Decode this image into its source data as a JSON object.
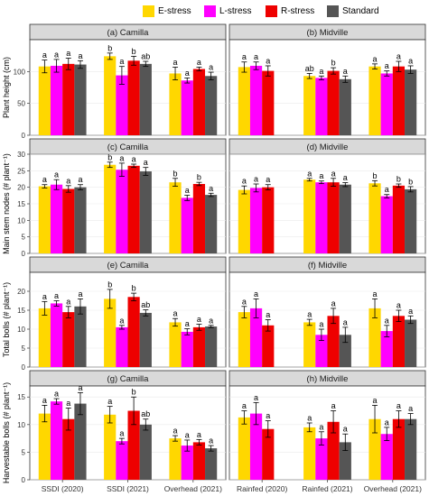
{
  "legend": {
    "items": [
      {
        "label": "E-stress",
        "color": "#FFD700"
      },
      {
        "label": "L-stress",
        "color": "#FF00FF"
      },
      {
        "label": "R-stress",
        "color": "#EE0000"
      },
      {
        "label": "Standard",
        "color": "#555555"
      }
    ]
  },
  "x_tick_labels": {
    "left": [
      "SSDI (2020)",
      "SSDI (2021)",
      "Overhead (2021)"
    ],
    "right": [
      "Rainfed (2020)",
      "Rainfed (2021)",
      "Overhead (2021)"
    ]
  },
  "chart_data": [
    {
      "type": "bar",
      "panel": "a",
      "title": "(a) Camilla",
      "ylabel": "Plant height (cm)",
      "ylim": [
        0,
        150
      ],
      "yticks": [
        0,
        50,
        100
      ],
      "categories": [
        "SSDI (2020)",
        "SSDI (2021)",
        "Overhead (2021)"
      ],
      "series": [
        {
          "name": "E-stress",
          "values": [
            108,
            124,
            97
          ],
          "errors": [
            10,
            5,
            10
          ],
          "letters": [
            "a",
            "b",
            "a"
          ]
        },
        {
          "name": "L-stress",
          "values": [
            109,
            94,
            86
          ],
          "errors": [
            10,
            14,
            4
          ],
          "letters": [
            "a",
            "a",
            "a"
          ]
        },
        {
          "name": "R-stress",
          "values": [
            112,
            117,
            104
          ],
          "errors": [
            9,
            7,
            3
          ],
          "letters": [
            "a",
            "b",
            "a"
          ]
        },
        {
          "name": "Standard",
          "values": [
            111,
            112,
            93
          ],
          "errors": [
            6,
            4,
            6
          ],
          "letters": [
            "a",
            "ab",
            "a"
          ]
        }
      ]
    },
    {
      "type": "bar",
      "panel": "b",
      "title": "(b) Midville",
      "ylim": [
        0,
        150
      ],
      "yticks": [
        0,
        50,
        100
      ],
      "categories": [
        "Rainfed (2020)",
        "Rainfed (2021)",
        "Overhead (2021)"
      ],
      "series": [
        {
          "name": "E-stress",
          "values": [
            107,
            93,
            108
          ],
          "errors": [
            8,
            4,
            4
          ],
          "letters": [
            "a",
            "ab",
            "a"
          ]
        },
        {
          "name": "L-stress",
          "values": [
            109,
            90,
            97
          ],
          "errors": [
            6,
            3,
            4
          ],
          "letters": [
            "a",
            "a",
            "a"
          ]
        },
        {
          "name": "R-stress",
          "values": [
            101,
            101,
            108
          ],
          "errors": [
            8,
            5,
            8
          ],
          "letters": [
            "a",
            "b",
            "a"
          ]
        },
        {
          "name": "Standard",
          "values": [
            null,
            88,
            103
          ],
          "errors": [
            null,
            5,
            6
          ],
          "letters": [
            null,
            "a",
            "a"
          ]
        }
      ]
    },
    {
      "type": "bar",
      "panel": "c",
      "title": "(c) Camilla",
      "ylabel": "Main stem nodes (# plant⁻¹)",
      "ylim": [
        0,
        30
      ],
      "yticks": [
        0,
        5,
        10,
        15,
        20,
        25,
        30
      ],
      "categories": [
        "SSDI (2020)",
        "SSDI (2021)",
        "Overhead (2021)"
      ],
      "series": [
        {
          "name": "E-stress",
          "values": [
            20.3,
            26.8,
            21.5
          ],
          "errors": [
            0.5,
            0.8,
            1.2
          ],
          "letters": [
            "a",
            "b",
            "b"
          ]
        },
        {
          "name": "L-stress",
          "values": [
            20.8,
            25.3,
            16.8
          ],
          "errors": [
            1.5,
            2.0,
            0.8
          ],
          "letters": [
            "a",
            "a",
            "a"
          ]
        },
        {
          "name": "R-stress",
          "values": [
            19.5,
            26.5,
            21.0
          ],
          "errors": [
            1.0,
            0.5,
            0.5
          ],
          "letters": [
            "a",
            "a",
            "b"
          ]
        },
        {
          "name": "Standard",
          "values": [
            20.0,
            24.8,
            17.7
          ],
          "errors": [
            0.8,
            1.2,
            0.5
          ],
          "letters": [
            "a",
            "a",
            "a"
          ]
        }
      ]
    },
    {
      "type": "bar",
      "panel": "d",
      "title": "(d) Midville",
      "ylim": [
        0,
        30
      ],
      "yticks": [
        0,
        5,
        10,
        15,
        20,
        25,
        30
      ],
      "categories": [
        "Rainfed (2020)",
        "Rainfed (2021)",
        "Overhead (2021)"
      ],
      "series": [
        {
          "name": "E-stress",
          "values": [
            19.2,
            22.3,
            21.2
          ],
          "errors": [
            1.2,
            0.4,
            0.8
          ],
          "letters": [
            "a",
            "a",
            "b"
          ]
        },
        {
          "name": "L-stress",
          "values": [
            19.8,
            21.5,
            17.3
          ],
          "errors": [
            1.2,
            0.4,
            0.5
          ],
          "letters": [
            "a",
            "a",
            "a"
          ]
        },
        {
          "name": "R-stress",
          "values": [
            20.0,
            21.5,
            20.5
          ],
          "errors": [
            0.8,
            1.2,
            0.5
          ],
          "letters": [
            "a",
            "a",
            "b"
          ]
        },
        {
          "name": "Standard",
          "values": [
            null,
            20.8,
            19.4
          ],
          "errors": [
            null,
            0.6,
            0.8
          ],
          "letters": [
            null,
            "a",
            "b"
          ]
        }
      ]
    },
    {
      "type": "bar",
      "panel": "e",
      "title": "(e) Camilla",
      "ylabel": "Total bolls (# plant⁻¹)",
      "ylim": [
        0,
        25
      ],
      "yticks": [
        0,
        5,
        10,
        15,
        20
      ],
      "categories": [
        "SSDI (2020)",
        "SSDI (2021)",
        "Overhead (2021)"
      ],
      "series": [
        {
          "name": "E-stress",
          "values": [
            15.5,
            18.0,
            11.8
          ],
          "errors": [
            1.8,
            2.5,
            1.0
          ],
          "letters": [
            "a",
            "b",
            "a"
          ]
        },
        {
          "name": "L-stress",
          "values": [
            16.8,
            10.5,
            9.3
          ],
          "errors": [
            0.7,
            0.5,
            0.8
          ],
          "letters": [
            "a",
            "a",
            "a"
          ]
        },
        {
          "name": "R-stress",
          "values": [
            14.5,
            18.5,
            10.5
          ],
          "errors": [
            1.5,
            1.0,
            0.8
          ],
          "letters": [
            "a",
            "b",
            "a"
          ]
        },
        {
          "name": "Standard",
          "values": [
            16.0,
            14.3,
            10.7
          ],
          "errors": [
            2.0,
            0.8,
            0.3
          ],
          "letters": [
            "a",
            "ab",
            "a"
          ]
        }
      ]
    },
    {
      "type": "bar",
      "panel": "f",
      "title": "(f) Midville",
      "ylim": [
        0,
        25
      ],
      "yticks": [
        0,
        5,
        10,
        15,
        20
      ],
      "categories": [
        "Rainfed (2020)",
        "Rainfed (2021)",
        "Overhead (2021)"
      ],
      "series": [
        {
          "name": "E-stress",
          "values": [
            14.5,
            11.8,
            15.5
          ],
          "errors": [
            1.5,
            0.8,
            2.5
          ],
          "letters": [
            "a",
            "a",
            "a"
          ]
        },
        {
          "name": "L-stress",
          "values": [
            15.5,
            8.5,
            9.5
          ],
          "errors": [
            2.5,
            1.5,
            1.5
          ],
          "letters": [
            "a",
            "a",
            "a"
          ]
        },
        {
          "name": "R-stress",
          "values": [
            11.0,
            13.5,
            13.5
          ],
          "errors": [
            1.5,
            2.0,
            1.5
          ],
          "letters": [
            "a",
            "a",
            "a"
          ]
        },
        {
          "name": "Standard",
          "values": [
            null,
            8.5,
            12.5
          ],
          "errors": [
            null,
            2.0,
            1.0
          ],
          "letters": [
            null,
            "a",
            "a"
          ]
        }
      ]
    },
    {
      "type": "bar",
      "panel": "g",
      "title": "(g) Camilla",
      "ylabel": "Harvestable bolls (# plant⁻¹)",
      "ylim": [
        0,
        17
      ],
      "yticks": [
        0,
        5,
        10,
        15
      ],
      "categories": [
        "SSDI (2020)",
        "SSDI (2021)",
        "Overhead (2021)"
      ],
      "series": [
        {
          "name": "E-stress",
          "values": [
            12.0,
            11.8,
            7.5
          ],
          "errors": [
            1.5,
            1.5,
            0.5
          ],
          "letters": [
            "a",
            "a",
            "a"
          ]
        },
        {
          "name": "L-stress",
          "values": [
            14.2,
            7.0,
            6.2
          ],
          "errors": [
            0.5,
            0.5,
            1.0
          ],
          "letters": [
            "a",
            "a",
            "a"
          ]
        },
        {
          "name": "R-stress",
          "values": [
            11.0,
            12.5,
            6.8
          ],
          "errors": [
            2.0,
            2.5,
            0.5
          ],
          "letters": [
            "a",
            "b",
            "a"
          ]
        },
        {
          "name": "Standard",
          "values": [
            13.8,
            10.0,
            5.7
          ],
          "errors": [
            2.0,
            1.0,
            0.5
          ],
          "letters": [
            "a",
            "ab",
            "a"
          ]
        }
      ]
    },
    {
      "type": "bar",
      "panel": "h",
      "title": "(h) Midville",
      "ylim": [
        0,
        17
      ],
      "yticks": [
        0,
        5,
        10,
        15
      ],
      "categories": [
        "Rainfed (2020)",
        "Rainfed (2021)",
        "Overhead (2021)"
      ],
      "series": [
        {
          "name": "E-stress",
          "values": [
            11.3,
            9.5,
            11.0
          ],
          "errors": [
            1.2,
            0.8,
            2.5
          ],
          "letters": [
            "a",
            "a",
            "a"
          ]
        },
        {
          "name": "L-stress",
          "values": [
            12.0,
            7.5,
            8.3
          ],
          "errors": [
            2.0,
            1.2,
            1.2
          ],
          "letters": [
            "a",
            "a",
            "a"
          ]
        },
        {
          "name": "R-stress",
          "values": [
            9.2,
            10.5,
            11.0
          ],
          "errors": [
            1.5,
            2.0,
            1.5
          ],
          "letters": [
            "a",
            "a",
            "a"
          ]
        },
        {
          "name": "Standard",
          "values": [
            null,
            6.8,
            11.0
          ],
          "errors": [
            null,
            1.5,
            1.0
          ],
          "letters": [
            null,
            "a",
            "a"
          ]
        }
      ]
    }
  ]
}
